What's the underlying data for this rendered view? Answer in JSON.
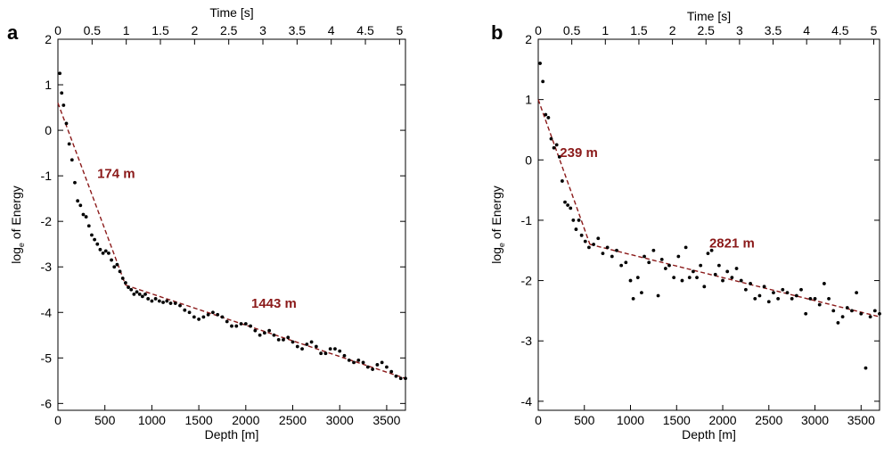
{
  "chart_data": [
    {
      "type": "scatter",
      "panel_label": "a",
      "xlabel": "Depth [m]",
      "ylabel_base": "log",
      "ylabel_sub": "e",
      "ylabel_rest": " of Energy",
      "top_axis_label": "Time [s]",
      "xlim": [
        0,
        3700
      ],
      "ylim": [
        -6.15,
        2
      ],
      "x_ticks": [
        0,
        500,
        1000,
        1500,
        2000,
        2500,
        3000,
        3500
      ],
      "y_ticks": [
        2,
        1,
        0,
        -1,
        -2,
        -3,
        -4,
        -5,
        -6
      ],
      "top_ticks": [
        "0",
        "0.5",
        "1",
        "1.5",
        "2",
        "2.5",
        "3",
        "3.5",
        "4",
        "4.5",
        "5"
      ],
      "points": [
        [
          20,
          1.25
        ],
        [
          40,
          0.82
        ],
        [
          60,
          0.55
        ],
        [
          90,
          0.15
        ],
        [
          120,
          -0.3
        ],
        [
          150,
          -0.65
        ],
        [
          180,
          -1.15
        ],
        [
          210,
          -1.55
        ],
        [
          240,
          -1.65
        ],
        [
          270,
          -1.85
        ],
        [
          300,
          -1.9
        ],
        [
          330,
          -2.1
        ],
        [
          360,
          -2.3
        ],
        [
          390,
          -2.4
        ],
        [
          420,
          -2.5
        ],
        [
          450,
          -2.62
        ],
        [
          480,
          -2.7
        ],
        [
          510,
          -2.65
        ],
        [
          540,
          -2.7
        ],
        [
          570,
          -2.85
        ],
        [
          600,
          -3.0
        ],
        [
          630,
          -2.95
        ],
        [
          660,
          -3.1
        ],
        [
          690,
          -3.25
        ],
        [
          720,
          -3.35
        ],
        [
          750,
          -3.45
        ],
        [
          780,
          -3.5
        ],
        [
          810,
          -3.6
        ],
        [
          840,
          -3.55
        ],
        [
          870,
          -3.6
        ],
        [
          900,
          -3.65
        ],
        [
          930,
          -3.6
        ],
        [
          960,
          -3.7
        ],
        [
          1000,
          -3.75
        ],
        [
          1040,
          -3.7
        ],
        [
          1080,
          -3.75
        ],
        [
          1120,
          -3.78
        ],
        [
          1160,
          -3.75
        ],
        [
          1200,
          -3.8
        ],
        [
          1250,
          -3.8
        ],
        [
          1300,
          -3.85
        ],
        [
          1350,
          -3.95
        ],
        [
          1400,
          -4.0
        ],
        [
          1450,
          -4.1
        ],
        [
          1500,
          -4.15
        ],
        [
          1550,
          -4.1
        ],
        [
          1600,
          -4.05
        ],
        [
          1650,
          -4.0
        ],
        [
          1700,
          -4.05
        ],
        [
          1750,
          -4.1
        ],
        [
          1800,
          -4.2
        ],
        [
          1850,
          -4.3
        ],
        [
          1900,
          -4.3
        ],
        [
          1950,
          -4.25
        ],
        [
          2000,
          -4.25
        ],
        [
          2050,
          -4.3
        ],
        [
          2100,
          -4.4
        ],
        [
          2150,
          -4.5
        ],
        [
          2200,
          -4.45
        ],
        [
          2250,
          -4.4
        ],
        [
          2300,
          -4.5
        ],
        [
          2350,
          -4.6
        ],
        [
          2400,
          -4.6
        ],
        [
          2450,
          -4.55
        ],
        [
          2500,
          -4.65
        ],
        [
          2550,
          -4.75
        ],
        [
          2600,
          -4.8
        ],
        [
          2650,
          -4.7
        ],
        [
          2700,
          -4.65
        ],
        [
          2750,
          -4.75
        ],
        [
          2800,
          -4.9
        ],
        [
          2850,
          -4.9
        ],
        [
          2900,
          -4.8
        ],
        [
          2950,
          -4.8
        ],
        [
          3000,
          -4.85
        ],
        [
          3050,
          -4.95
        ],
        [
          3100,
          -5.05
        ],
        [
          3150,
          -5.1
        ],
        [
          3200,
          -5.05
        ],
        [
          3250,
          -5.1
        ],
        [
          3300,
          -5.2
        ],
        [
          3350,
          -5.25
        ],
        [
          3400,
          -5.15
        ],
        [
          3450,
          -5.1
        ],
        [
          3500,
          -5.2
        ],
        [
          3550,
          -5.3
        ],
        [
          3600,
          -5.4
        ],
        [
          3650,
          -5.45
        ],
        [
          3700,
          -5.45
        ]
      ],
      "fit_lines": [
        {
          "label": "174 m",
          "x": [
            0,
            720
          ],
          "y": [
            0.6,
            -3.4
          ]
        },
        {
          "label": "1443 m",
          "x": [
            720,
            3700
          ],
          "y": [
            -3.4,
            -5.45
          ]
        }
      ],
      "annotations": [
        {
          "text": "174 m",
          "x": 620,
          "y": -1.05
        },
        {
          "text": "1443 m",
          "x": 2300,
          "y": -3.9
        }
      ]
    },
    {
      "type": "scatter",
      "panel_label": "b",
      "xlabel": "Depth [m]",
      "ylabel_base": "log",
      "ylabel_sub": "e",
      "ylabel_rest": " of Energy",
      "top_axis_label": "Time [s]",
      "xlim": [
        0,
        3700
      ],
      "ylim": [
        -4.15,
        2
      ],
      "x_ticks": [
        0,
        500,
        1000,
        1500,
        2000,
        2500,
        3000,
        3500
      ],
      "y_ticks": [
        2,
        1,
        0,
        -1,
        -2,
        -3,
        -4
      ],
      "top_ticks": [
        "0",
        "0.5",
        "1",
        "1.5",
        "2",
        "2.5",
        "3",
        "3.5",
        "4",
        "4.5",
        "5"
      ],
      "points": [
        [
          20,
          1.6
        ],
        [
          50,
          1.3
        ],
        [
          80,
          0.75
        ],
        [
          110,
          0.7
        ],
        [
          140,
          0.35
        ],
        [
          170,
          0.2
        ],
        [
          200,
          0.25
        ],
        [
          230,
          0.05
        ],
        [
          260,
          -0.35
        ],
        [
          290,
          -0.7
        ],
        [
          320,
          -0.75
        ],
        [
          350,
          -0.8
        ],
        [
          380,
          -1.0
        ],
        [
          410,
          -1.15
        ],
        [
          440,
          -1.0
        ],
        [
          470,
          -1.25
        ],
        [
          510,
          -1.35
        ],
        [
          550,
          -1.45
        ],
        [
          600,
          -1.4
        ],
        [
          650,
          -1.3
        ],
        [
          700,
          -1.55
        ],
        [
          750,
          -1.45
        ],
        [
          800,
          -1.6
        ],
        [
          850,
          -1.5
        ],
        [
          900,
          -1.75
        ],
        [
          950,
          -1.7
        ],
        [
          1000,
          -2.0
        ],
        [
          1030,
          -2.3
        ],
        [
          1080,
          -1.95
        ],
        [
          1120,
          -2.2
        ],
        [
          1150,
          -1.6
        ],
        [
          1200,
          -1.7
        ],
        [
          1250,
          -1.5
        ],
        [
          1300,
          -2.25
        ],
        [
          1340,
          -1.65
        ],
        [
          1380,
          -1.8
        ],
        [
          1420,
          -1.75
        ],
        [
          1470,
          -1.95
        ],
        [
          1520,
          -1.6
        ],
        [
          1560,
          -2.0
        ],
        [
          1600,
          -1.45
        ],
        [
          1640,
          -1.95
        ],
        [
          1680,
          -1.85
        ],
        [
          1720,
          -1.95
        ],
        [
          1760,
          -1.75
        ],
        [
          1800,
          -2.1
        ],
        [
          1840,
          -1.55
        ],
        [
          1880,
          -1.5
        ],
        [
          1920,
          -1.9
        ],
        [
          1960,
          -1.75
        ],
        [
          2000,
          -2.0
        ],
        [
          2050,
          -1.85
        ],
        [
          2100,
          -1.95
        ],
        [
          2150,
          -1.8
        ],
        [
          2200,
          -2.0
        ],
        [
          2250,
          -2.15
        ],
        [
          2300,
          -2.05
        ],
        [
          2350,
          -2.3
        ],
        [
          2400,
          -2.25
        ],
        [
          2450,
          -2.1
        ],
        [
          2500,
          -2.35
        ],
        [
          2550,
          -2.2
        ],
        [
          2600,
          -2.3
        ],
        [
          2650,
          -2.15
        ],
        [
          2700,
          -2.2
        ],
        [
          2750,
          -2.3
        ],
        [
          2800,
          -2.25
        ],
        [
          2850,
          -2.15
        ],
        [
          2900,
          -2.55
        ],
        [
          2950,
          -2.3
        ],
        [
          3000,
          -2.3
        ],
        [
          3050,
          -2.4
        ],
        [
          3100,
          -2.05
        ],
        [
          3150,
          -2.3
        ],
        [
          3200,
          -2.5
        ],
        [
          3250,
          -2.7
        ],
        [
          3300,
          -2.6
        ],
        [
          3350,
          -2.45
        ],
        [
          3400,
          -2.5
        ],
        [
          3450,
          -2.2
        ],
        [
          3500,
          -2.55
        ],
        [
          3550,
          -3.45
        ],
        [
          3600,
          -2.6
        ],
        [
          3650,
          -2.5
        ],
        [
          3700,
          -2.55
        ]
      ],
      "fit_lines": [
        {
          "label": "239 m",
          "x": [
            0,
            560
          ],
          "y": [
            1.0,
            -1.4
          ]
        },
        {
          "label": "2821 m",
          "x": [
            560,
            3700
          ],
          "y": [
            -1.4,
            -2.6
          ]
        }
      ],
      "annotations": [
        {
          "text": "239 m",
          "x": 440,
          "y": 0.05
        },
        {
          "text": "2821 m",
          "x": 2100,
          "y": -1.45
        }
      ]
    }
  ]
}
